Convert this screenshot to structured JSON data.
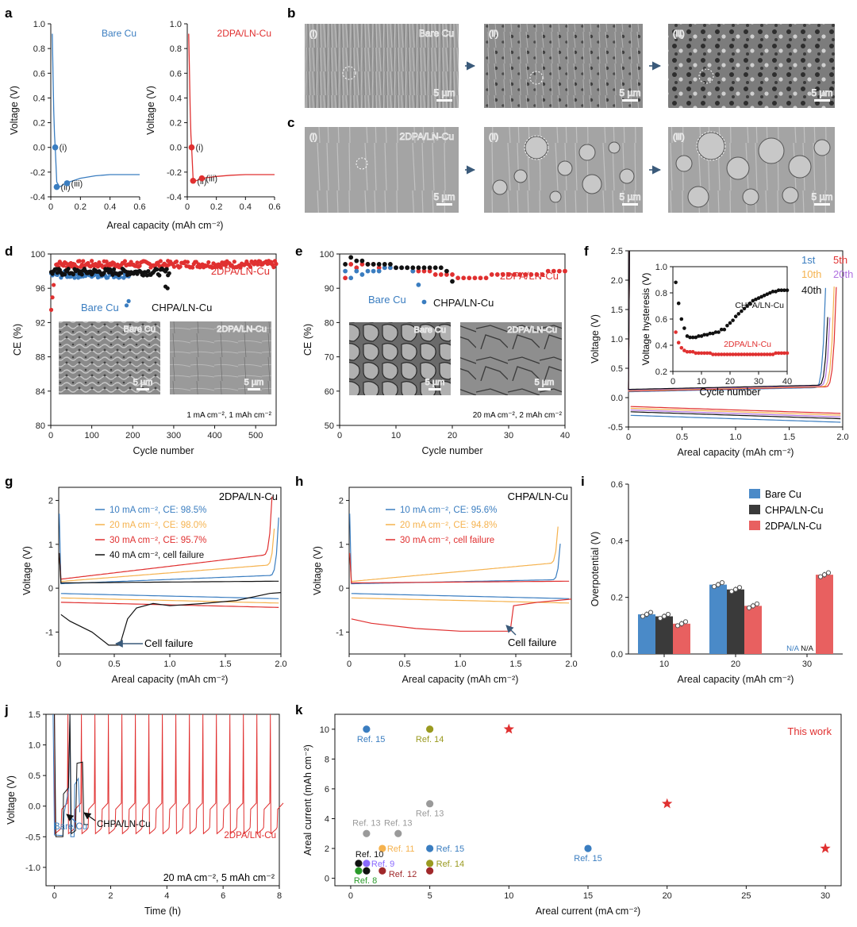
{
  "colors": {
    "blue": "#3a7dc0",
    "red": "#e03030",
    "black": "#111111",
    "orange": "#f5b24e",
    "purple": "#b070e0",
    "lightred": "#e86060",
    "gray": "#9a9a9a",
    "olive": "#9a9a20",
    "green": "#2a9a2a",
    "darkred": "#a0282a",
    "violet": "#8a6aff"
  },
  "panels": {
    "a": {
      "letter": "a",
      "left_label": "Bare Cu",
      "right_label": "2DPA/LN-Cu",
      "xlabel": "Areal capacity (mAh cm⁻²)",
      "ylabel": "Voltage (V)",
      "point_labels": [
        "(i)",
        "(ii)",
        "(iii)"
      ]
    },
    "b": {
      "letter": "b",
      "label": "Bare Cu",
      "roman": [
        "(i)",
        "(ii)",
        "(iii)"
      ],
      "scale": "5 µm"
    },
    "c": {
      "letter": "c",
      "label": "2DPA/LN-Cu",
      "roman": [
        "(i)",
        "(ii)",
        "(iii)"
      ],
      "scale": "5 µm"
    },
    "d": {
      "letter": "d",
      "xlabel": "Cycle number",
      "ylabel": "CE (%)",
      "cond": "1 mA cm⁻², 1 mAh cm⁻²",
      "inset_left": "Bare Cu",
      "inset_right": "2DPA/LN-Cu",
      "scale": "5 µm"
    },
    "e": {
      "letter": "e",
      "xlabel": "Cycle number",
      "ylabel": "CE (%)",
      "cond": "20 mA cm⁻², 2 mAh cm⁻²",
      "inset_left": "Bare Cu",
      "inset_right": "2DPA/LN-Cu",
      "scale": "5 µm"
    },
    "f": {
      "letter": "f",
      "xlabel": "Areal capacity (mAh cm⁻²)",
      "ylabel": "Voltage (V)",
      "inset_xlabel": "Cycle number",
      "inset_ylabel": "Voltage hysteresis (V)",
      "legend": [
        "1st",
        "5th",
        "10th",
        "20th",
        "40th"
      ]
    },
    "g": {
      "letter": "g",
      "title": "2DPA/LN-Cu",
      "xlabel": "Areal capacity (mAh cm⁻²)",
      "ylabel": "Voltage (V)",
      "legend": [
        "10 mA cm⁻², CE: 98.5%",
        "20 mA cm⁻², CE: 98.0%",
        "30 mA cm⁻², CE: 95.7%",
        "40 mA cm⁻², cell failure"
      ],
      "annotation": "Cell failure"
    },
    "h": {
      "letter": "h",
      "title": "CHPA/LN-Cu",
      "xlabel": "Areal capacity (mAh cm⁻²)",
      "ylabel": "Voltage (V)",
      "legend": [
        "10 mA cm⁻², CE: 95.6%",
        "20 mA cm⁻², CE: 94.8%",
        "30 mA cm⁻², cell failure"
      ],
      "annotation": "Cell failure"
    },
    "i": {
      "letter": "i",
      "xlabel": "Areal capacity (mAh cm⁻²)",
      "ylabel": "Overpotential (V)",
      "na": "N/A"
    },
    "j": {
      "letter": "j",
      "xlabel": "Time (h)",
      "ylabel": "Voltage (V)",
      "cond": "20 mA cm⁻², 5 mAh cm⁻²",
      "label_bare": "Bare Cu",
      "label_chpa": "CHPA/LN-Cu",
      "label_2dpa": "2DPA/LN-Cu"
    },
    "k": {
      "letter": "k",
      "xlabel": "Areal current (mA cm⁻²)",
      "ylabel": "Areal current (mAh cm⁻²)",
      "this_work": "This work"
    }
  },
  "chart_data": [
    {
      "id": "a-left",
      "type": "line",
      "title": "Bare Cu",
      "xlim": [
        0,
        0.6
      ],
      "ylim": [
        -0.4,
        1.0
      ],
      "xticks": [
        0,
        0.2,
        0.4,
        0.6
      ],
      "yticks": [
        -0.4,
        -0.2,
        0,
        0.2,
        0.4,
        0.6,
        0.8,
        1.0
      ],
      "series": [
        {
          "name": "Bare Cu",
          "x": [
            0.01,
            0.015,
            0.02,
            0.025,
            0.03,
            0.04,
            0.06,
            0.1,
            0.2,
            0.3,
            0.4,
            0.5,
            0.6
          ],
          "y": [
            0.92,
            0.6,
            0.3,
            0.1,
            0.0,
            -0.28,
            -0.32,
            -0.29,
            -0.25,
            -0.23,
            -0.22,
            -0.22,
            -0.22
          ]
        }
      ],
      "points": [
        {
          "label": "(i)",
          "x": 0.03,
          "y": 0.0
        },
        {
          "label": "(ii)",
          "x": 0.04,
          "y": -0.32
        },
        {
          "label": "(iii)",
          "x": 0.11,
          "y": -0.29
        }
      ]
    },
    {
      "id": "a-right",
      "type": "line",
      "title": "2DPA/LN-Cu",
      "xlim": [
        0,
        0.6
      ],
      "ylim": [
        -0.4,
        1.0
      ],
      "xticks": [
        0,
        0.2,
        0.4,
        0.6
      ],
      "yticks": [
        -0.4,
        -0.2,
        0,
        0.2,
        0.4,
        0.6,
        0.8,
        1.0
      ],
      "series": [
        {
          "name": "2DPA/LN-Cu",
          "x": [
            0.01,
            0.015,
            0.02,
            0.025,
            0.03,
            0.04,
            0.06,
            0.1,
            0.2,
            0.3,
            0.4,
            0.5,
            0.6
          ],
          "y": [
            0.92,
            0.6,
            0.3,
            0.1,
            0.0,
            -0.25,
            -0.27,
            -0.25,
            -0.235,
            -0.225,
            -0.22,
            -0.22,
            -0.22
          ]
        }
      ],
      "points": [
        {
          "label": "(i)",
          "x": 0.03,
          "y": 0.0
        },
        {
          "label": "(ii)",
          "x": 0.04,
          "y": -0.27
        },
        {
          "label": "(iii)",
          "x": 0.1,
          "y": -0.25
        }
      ]
    },
    {
      "id": "d",
      "type": "scatter",
      "xlim": [
        0,
        550
      ],
      "ylim": [
        80,
        100
      ],
      "xticks": [
        0,
        100,
        200,
        300,
        400,
        500
      ],
      "yticks": [
        80,
        84,
        88,
        92,
        96,
        100
      ],
      "series": [
        {
          "name": "2DPA/LN-Cu",
          "color": "#e03030",
          "x_range": [
            1,
            550
          ],
          "mean": 98.8,
          "start": 93.0
        },
        {
          "name": "Bare Cu",
          "color": "#3a7dc0",
          "x_range": [
            1,
            195
          ],
          "mean": 97.6,
          "outliers": [
            [
              185,
              94.0
            ],
            [
              190,
              94.5
            ]
          ]
        },
        {
          "name": "CHPA/LN-Cu",
          "color": "#111111",
          "x_range": [
            1,
            290
          ],
          "mean": 97.9,
          "outliers": [
            [
              280,
              96.2
            ],
            [
              285,
              96.0
            ]
          ]
        }
      ],
      "labels": [
        "2DPA/LN-Cu",
        "Bare Cu",
        "CHPA/LN-Cu"
      ]
    },
    {
      "id": "e",
      "type": "scatter",
      "xlim": [
        0,
        40
      ],
      "ylim": [
        50,
        100
      ],
      "xticks": [
        0,
        10,
        20,
        30,
        40
      ],
      "yticks": [
        50,
        60,
        70,
        80,
        90,
        100
      ],
      "series": [
        {
          "name": "2DPA/LN-Cu",
          "color": "#e03030",
          "x": [
            1,
            2,
            3,
            4,
            5,
            6,
            7,
            8,
            9,
            10,
            11,
            12,
            13,
            14,
            15,
            16,
            17,
            18,
            19,
            20,
            21,
            22,
            23,
            24,
            25,
            26,
            27,
            28,
            29,
            30,
            31,
            32,
            33,
            34,
            35,
            36,
            37,
            38,
            39,
            40
          ],
          "y": [
            93,
            97,
            96,
            97,
            97,
            97,
            96,
            96,
            96,
            96,
            96,
            96,
            95,
            95,
            95,
            95,
            94,
            94,
            94,
            94,
            93,
            93,
            93,
            93,
            93,
            93,
            94,
            94,
            94,
            94,
            94,
            94,
            94,
            94,
            94,
            94,
            95,
            95,
            95,
            95
          ]
        },
        {
          "name": "Bare Cu",
          "color": "#3a7dc0",
          "x": [
            1,
            2,
            3,
            4,
            5,
            6,
            7,
            8,
            9,
            10,
            11,
            12,
            13,
            14,
            15
          ],
          "y": [
            95,
            93,
            95,
            94,
            95,
            95,
            95,
            96,
            96,
            96,
            96,
            96,
            95,
            91,
            86
          ]
        },
        {
          "name": "CHPA/LN-Cu",
          "color": "#111111",
          "x": [
            1,
            2,
            3,
            4,
            5,
            6,
            7,
            8,
            9,
            10,
            11,
            12,
            13,
            14,
            15,
            16,
            17,
            18,
            19,
            20
          ],
          "y": [
            97,
            99,
            98,
            98,
            97,
            97,
            97,
            97,
            97,
            96,
            96,
            96,
            96,
            96,
            96,
            96,
            96,
            96,
            95,
            92
          ]
        }
      ],
      "labels": [
        "2DPA/LN-Cu",
        "Bare Cu",
        "CHPA/LN-Cu"
      ]
    },
    {
      "id": "f",
      "type": "line",
      "xlim": [
        0,
        2.0
      ],
      "ylim": [
        -0.5,
        2.5
      ],
      "xticks": [
        0,
        0.5,
        1.0,
        1.5,
        2.0
      ],
      "yticks": [
        -0.5,
        0,
        0.5,
        1.0,
        1.5,
        2.0,
        2.5
      ],
      "series": [
        {
          "name": "1st",
          "color": "#3a7dc0",
          "end": 1.85
        },
        {
          "name": "5th",
          "color": "#e03030",
          "end": 1.95
        },
        {
          "name": "10th",
          "color": "#f5b24e",
          "end": 1.93
        },
        {
          "name": "20th",
          "color": "#b070e0",
          "end": 1.9
        },
        {
          "name": "40th",
          "color": "#111111",
          "end": 1.88
        }
      ],
      "inset": {
        "xlim": [
          0,
          40
        ],
        "ylim": [
          0.2,
          1.0
        ],
        "xticks": [
          0,
          10,
          20,
          30,
          40
        ],
        "yticks": [
          0.2,
          0.4,
          0.6,
          0.8,
          1.0
        ],
        "series": [
          {
            "name": "CHPA/LN-Cu",
            "color": "#111111",
            "y": [
              0.88,
              0.72,
              0.6,
              0.53,
              0.47,
              0.46,
              0.46,
              0.46,
              0.47,
              0.47,
              0.48,
              0.48,
              0.49,
              0.49,
              0.5,
              0.5,
              0.52,
              0.52,
              0.55,
              0.57,
              0.59,
              0.62,
              0.64,
              0.66,
              0.68,
              0.7,
              0.72,
              0.74,
              0.75,
              0.76,
              0.77,
              0.78,
              0.79,
              0.8,
              0.81,
              0.81,
              0.82,
              0.82,
              0.82,
              0.82
            ]
          },
          {
            "name": "2DPA/LN-Cu",
            "color": "#e03030",
            "y": [
              0.5,
              0.42,
              0.38,
              0.36,
              0.35,
              0.35,
              0.35,
              0.34,
              0.34,
              0.34,
              0.34,
              0.34,
              0.34,
              0.33,
              0.33,
              0.33,
              0.33,
              0.33,
              0.33,
              0.33,
              0.33,
              0.33,
              0.33,
              0.33,
              0.33,
              0.33,
              0.33,
              0.33,
              0.33,
              0.33,
              0.33,
              0.33,
              0.33,
              0.33,
              0.33,
              0.34,
              0.34,
              0.34,
              0.34,
              0.34
            ]
          }
        ]
      }
    },
    {
      "id": "g",
      "type": "line",
      "title": "2DPA/LN-Cu",
      "xlim": [
        0,
        2.0
      ],
      "ylim": [
        -1.5,
        2.3
      ],
      "xticks": [
        0,
        0.5,
        1.0,
        1.5,
        2.0
      ],
      "yticks": [
        -1,
        0,
        1,
        2
      ],
      "series": [
        {
          "name": "10 mA cm⁻², CE: 98.5%",
          "color": "#3a7dc0"
        },
        {
          "name": "20 mA cm⁻², CE: 98.0%",
          "color": "#f5b24e"
        },
        {
          "name": "30 mA cm⁻², CE: 95.7%",
          "color": "#e03030"
        },
        {
          "name": "40 mA cm⁻², cell failure",
          "color": "#111111"
        }
      ]
    },
    {
      "id": "h",
      "type": "line",
      "title": "CHPA/LN-Cu",
      "xlim": [
        0,
        2.0
      ],
      "ylim": [
        -1.5,
        2.3
      ],
      "xticks": [
        0,
        0.5,
        1.0,
        1.5,
        2.0
      ],
      "yticks": [
        -1,
        0,
        1,
        2
      ],
      "series": [
        {
          "name": "10 mA cm⁻², CE: 95.6%",
          "color": "#3a7dc0"
        },
        {
          "name": "20 mA cm⁻², CE: 94.8%",
          "color": "#f5b24e"
        },
        {
          "name": "30 mA cm⁻², cell failure",
          "color": "#e03030"
        }
      ]
    },
    {
      "id": "i",
      "type": "bar",
      "categories": [
        "10",
        "20",
        "30"
      ],
      "ylim": [
        0,
        0.6
      ],
      "yticks": [
        0,
        0.2,
        0.4,
        0.6
      ],
      "series": [
        {
          "name": "Bare Cu",
          "color": "#4a8ac8",
          "values": [
            0.14,
            0.245,
            null
          ]
        },
        {
          "name": "CHPA/LN-Cu",
          "color": "#3a3a3a",
          "values": [
            0.133,
            0.228,
            null
          ]
        },
        {
          "name": "2DPA/LN-Cu",
          "color": "#e86060",
          "values": [
            0.107,
            0.17,
            0.28
          ]
        }
      ]
    },
    {
      "id": "j",
      "type": "line",
      "xlim": [
        -0.3,
        8.0
      ],
      "ylim": [
        -1.3,
        1.5
      ],
      "xticks": [
        0,
        2,
        4,
        6,
        8
      ],
      "yticks": [
        -1.0,
        -0.5,
        0,
        0.5,
        1.0,
        1.5
      ],
      "series": [
        {
          "name": "Bare Cu",
          "color": "#3a7dc0"
        },
        {
          "name": "CHPA/LN-Cu",
          "color": "#111111"
        },
        {
          "name": "2DPA/LN-Cu",
          "color": "#e03030"
        }
      ]
    },
    {
      "id": "k",
      "type": "scatter",
      "xlim": [
        -1,
        31
      ],
      "ylim": [
        -0.5,
        11
      ],
      "xticks": [
        0,
        5,
        10,
        15,
        20,
        25,
        30
      ],
      "yticks": [
        0,
        2,
        4,
        6,
        8,
        10
      ],
      "points": [
        {
          "label": "Ref. 15",
          "x": 1,
          "y": 10,
          "color": "#3a7dc0"
        },
        {
          "label": "Ref. 14",
          "x": 5,
          "y": 10,
          "color": "#9a9a20"
        },
        {
          "label": "Ref. 13",
          "x": 1,
          "y": 3,
          "color": "#9a9a9a"
        },
        {
          "label": "Ref. 13",
          "x": 3,
          "y": 3,
          "color": "#9a9a9a"
        },
        {
          "label": "Ref. 13",
          "x": 5,
          "y": 5,
          "color": "#9a9a9a"
        },
        {
          "label": "Ref. 11",
          "x": 2,
          "y": 2,
          "color": "#f5b24e"
        },
        {
          "label": "Ref. 15",
          "x": 5,
          "y": 2,
          "color": "#3a7dc0"
        },
        {
          "label": "Ref. 15",
          "x": 15,
          "y": 2,
          "color": "#3a7dc0"
        },
        {
          "label": "Ref. 10",
          "x": 0.5,
          "y": 1,
          "color": "#111111"
        },
        {
          "label": "Ref. 9",
          "x": 1,
          "y": 1,
          "color": "#8a6aff"
        },
        {
          "label": "Ref. 14",
          "x": 5,
          "y": 1,
          "color": "#9a9a20"
        },
        {
          "label": "Ref. 8",
          "x": 0.5,
          "y": 0.5,
          "color": "#2a9a2a"
        },
        {
          "label": "Ref. 12",
          "x": 2,
          "y": 0.5,
          "color": "#a0282a"
        },
        {
          "label": "",
          "x": 1,
          "y": 0.5,
          "color": "#111111"
        },
        {
          "label": "",
          "x": 5,
          "y": 0.5,
          "color": "#a0282a"
        }
      ],
      "this_work": [
        {
          "x": 10,
          "y": 10
        },
        {
          "x": 20,
          "y": 5
        },
        {
          "x": 30,
          "y": 2
        }
      ]
    }
  ]
}
